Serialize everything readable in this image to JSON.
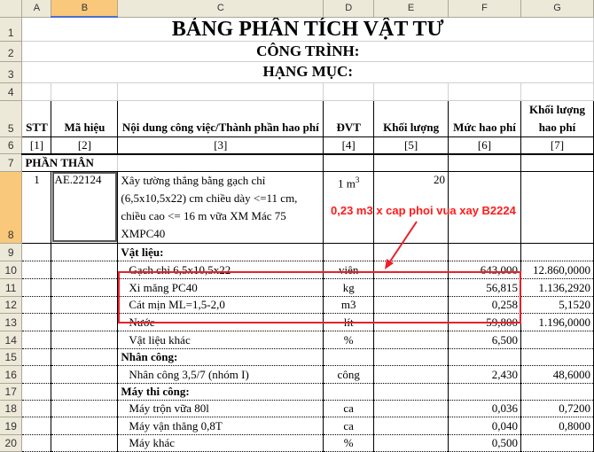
{
  "columns": [
    "A",
    "B",
    "C",
    "D",
    "E",
    "F",
    "G"
  ],
  "title": "BẢNG PHÂN TÍCH VẬT TƯ",
  "project": "CÔNG TRÌNH:",
  "item": "HẠNG MỤC:",
  "headers": [
    "STT",
    "Mã hiệu",
    "Nội dung công việc/Thành phần hao phí",
    "ĐVT",
    "Khối lượng",
    "Mức hao phí",
    "Khối lượng hao phí"
  ],
  "index_labels": [
    "[1]",
    "[2]",
    "[3]",
    "[4]",
    "[5]",
    "[6]",
    "[7]"
  ],
  "section": "PHẦN THÂN",
  "task": {
    "stt": "1",
    "code": "AE.22124",
    "desc": "Xây tường thẳng bằng gạch chỉ (6,5x10,5x22) cm chiều dày <=11 cm, chiều cao <= 16 m vữa XM Mác 75 XMPC40",
    "unit": "1 m",
    "unit_sup": "3",
    "qty": "20"
  },
  "rows": [
    {
      "row": "9",
      "desc": "Vật liệu:",
      "bold": true,
      "unit": "",
      "rate": "",
      "total": ""
    },
    {
      "row": "10",
      "desc": "Gạch chỉ 6,5x10,5x22",
      "unit": "viên",
      "rate": "643,000",
      "total": "12.860,0000"
    },
    {
      "row": "11",
      "desc": "Xi măng PC40",
      "unit": "kg",
      "rate": "56,815",
      "total": "1.136,2920"
    },
    {
      "row": "12",
      "desc": "Cát mịn ML=1,5-2,0",
      "unit": "m3",
      "rate": "0,258",
      "total": "5,1520"
    },
    {
      "row": "13",
      "desc": "Nước",
      "unit": "lít",
      "rate": "59,800",
      "total": "1.196,0000"
    },
    {
      "row": "14",
      "desc": "Vật liệu khác",
      "unit": "%",
      "rate": "6,500",
      "total": ""
    },
    {
      "row": "15",
      "desc": "Nhân công:",
      "bold": true,
      "unit": "",
      "rate": "",
      "total": ""
    },
    {
      "row": "16",
      "desc": "Nhân công 3,5/7 (nhóm I)",
      "unit": "công",
      "rate": "2,430",
      "total": "48,6000"
    },
    {
      "row": "17",
      "desc": "Máy thi công:",
      "bold": true,
      "unit": "",
      "rate": "",
      "total": ""
    },
    {
      "row": "18",
      "desc": "Máy trộn vữa 80l",
      "unit": "ca",
      "rate": "0,036",
      "total": "0,7200"
    },
    {
      "row": "19",
      "desc": "Máy vận thăng 0,8T",
      "unit": "ca",
      "rate": "0,040",
      "total": "0,8000"
    },
    {
      "row": "20",
      "desc": "Máy khác",
      "unit": "%",
      "rate": "0,500",
      "total": ""
    }
  ],
  "annotation": "0,23 m3 x cap phoi vua xay B2224",
  "colors": {
    "annotation": "#e8212a",
    "selected_header": "#f9c87a"
  }
}
